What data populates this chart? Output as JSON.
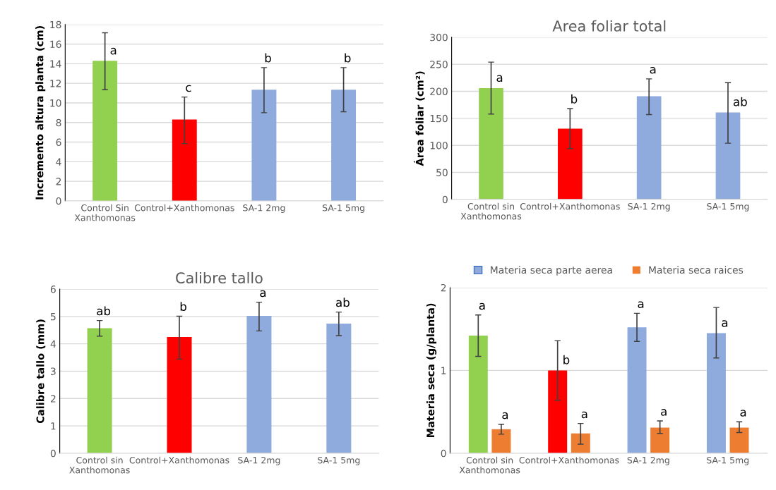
{
  "chart_data": [
    {
      "type": "bar",
      "ylabel": "Incremento altura planta (cm)",
      "categories": [
        "Control Sin\nXanthomonas",
        "Control+Xanthomonas",
        "SA-1 2mg",
        "SA-1 5mg"
      ],
      "series": [
        {
          "colors": [
            "#92d050",
            "#ff0000",
            "#8faadc",
            "#8faadc"
          ],
          "values": [
            14.3,
            8.3,
            11.35,
            11.35
          ],
          "errors": [
            [
              11.35,
              17.15
            ],
            [
              5.85,
              10.6
            ],
            [
              9.0,
              13.6
            ],
            [
              9.1,
              13.6
            ]
          ]
        }
      ],
      "ylim": [
        0,
        18
      ],
      "yticks": [
        0,
        2,
        4,
        6,
        8,
        10,
        12,
        14,
        16,
        18
      ],
      "grid": "y",
      "annotations": [
        {
          "text": "a",
          "x": "Control Sin\nXanthomonas",
          "y": 14.3
        },
        {
          "text": "c",
          "x": "Control+Xanthomonas",
          "y": 8.3
        },
        {
          "text": "b",
          "x": "SA-1 2mg",
          "y": 11.35
        },
        {
          "text": "b",
          "x": "SA-1 5mg",
          "y": 11.35
        }
      ]
    },
    {
      "type": "bar",
      "title": "Area foliar total",
      "ylabel": "Área foliar (cm²)",
      "categories": [
        "Control sin\nXanthomonas",
        "Control+Xanthomonas",
        "SA-1 2mg",
        "SA-1 5mg"
      ],
      "series": [
        {
          "colors": [
            "#92d050",
            "#ff0000",
            "#8faadc",
            "#8faadc"
          ],
          "values": [
            206,
            131,
            191,
            161
          ],
          "errors": [
            [
              158,
              254
            ],
            [
              94,
              168
            ],
            [
              157,
              223
            ],
            [
              104,
              216
            ]
          ]
        }
      ],
      "ylim": [
        0,
        300
      ],
      "yticks": [
        0,
        50,
        100,
        150,
        200,
        250,
        300
      ],
      "grid": "y",
      "annotations": [
        {
          "text": "a",
          "x": "Control sin\nXanthomonas",
          "y": 206
        },
        {
          "text": "b",
          "x": "Control+Xanthomonas",
          "y": 131
        },
        {
          "text": "a",
          "x": "SA-1 2mg",
          "y": 191
        },
        {
          "text": "ab",
          "x": "SA-1 5mg",
          "y": 161
        }
      ]
    },
    {
      "type": "bar",
      "title": "Calibre tallo",
      "ylabel": "Calibre tallo (mm)",
      "categories": [
        "Control sin\nXanthomonas",
        "Control+Xanthomonas",
        "SA-1 2mg",
        "SA-1 5mg"
      ],
      "series": [
        {
          "colors": [
            "#92d050",
            "#ff0000",
            "#8faadc",
            "#8faadc"
          ],
          "values": [
            4.57,
            4.25,
            5.02,
            4.74
          ],
          "errors": [
            [
              4.28,
              4.85
            ],
            [
              3.44,
              5.01
            ],
            [
              4.47,
              5.52
            ],
            [
              4.3,
              5.16
            ]
          ]
        }
      ],
      "ylim": [
        0,
        6
      ],
      "yticks": [
        0,
        1,
        2,
        3,
        4,
        5,
        6
      ],
      "grid": "y",
      "annotations": [
        {
          "text": "ab",
          "x": "Control sin\nXanthomonas",
          "y": 4.57
        },
        {
          "text": "b",
          "x": "Control+Xanthomonas",
          "y": 4.25
        },
        {
          "text": "a",
          "x": "SA-1 2mg",
          "y": 5.02
        },
        {
          "text": "ab",
          "x": "SA-1 5mg",
          "y": 4.74
        }
      ]
    },
    {
      "type": "bar",
      "ylabel": "Materia seca (g/planta)",
      "categories": [
        "Control sin\nXanthomonas",
        "Control+Xanthomonas",
        "SA-1 2mg",
        "SA-1 5mg"
      ],
      "series": [
        {
          "name": "Materia seca parte aerea",
          "color": "#8faadc",
          "colors": [
            "#92d050",
            "#ff0000",
            "#8faadc",
            "#8faadc"
          ],
          "values": [
            1.42,
            1.0,
            1.52,
            1.45
          ],
          "errors": [
            [
              1.17,
              1.67
            ],
            [
              0.64,
              1.36
            ],
            [
              1.35,
              1.69
            ],
            [
              1.15,
              1.76
            ]
          ]
        },
        {
          "name": "Materia seca raices",
          "color": "#ed7d31",
          "values": [
            0.29,
            0.24,
            0.31,
            0.31
          ],
          "errors": [
            [
              0.23,
              0.35
            ],
            [
              0.11,
              0.36
            ],
            [
              0.24,
              0.39
            ],
            [
              0.25,
              0.38
            ]
          ]
        }
      ],
      "ylim": [
        0,
        2
      ],
      "yticks": [
        0,
        1,
        2
      ],
      "grid": "y",
      "legend": "top",
      "annotations": [
        {
          "text": "a",
          "x": "Control sin\nXanthomonas",
          "y": 1.42
        },
        {
          "text": "b",
          "x": "Control+Xanthomonas",
          "y": 1.0
        },
        {
          "text": "a",
          "x": "SA-1 2mg",
          "y": 1.52
        },
        {
          "text": "a",
          "x": "SA-1 5mg",
          "y": 1.45
        },
        {
          "text": "a",
          "x": "Control sin\nXanthomonas",
          "y": 0.29
        },
        {
          "text": "a",
          "x": "Control+Xanthomonas",
          "y": 0.24
        },
        {
          "text": "a",
          "x": "SA-1 2mg",
          "y": 0.31
        },
        {
          "text": "a",
          "x": "SA-1 5mg",
          "y": 0.31
        }
      ]
    }
  ]
}
